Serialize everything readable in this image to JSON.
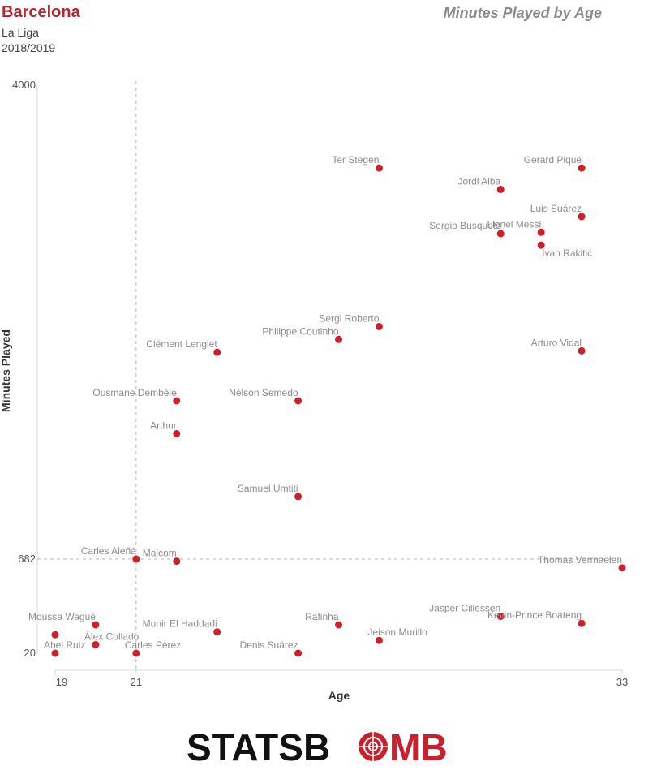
{
  "header": {
    "team": "Barcelona",
    "league": "La Liga",
    "season": "2018/2019",
    "title": "Minutes Played by Age"
  },
  "logo": {
    "text_left": "STATSB",
    "text_right": "MB",
    "brand": "STATSBOMB"
  },
  "colors": {
    "point": "#d11f2a",
    "team": "#b3262c",
    "logo_text": "#111111",
    "logo_accent": "#c8202c"
  },
  "chart_data": {
    "type": "scatter",
    "title": "Minutes Played by Age",
    "xlabel": "Age",
    "ylabel": "Minutes Played",
    "xlim": [
      19,
      33
    ],
    "ylim": [
      20,
      4000
    ],
    "x_ticks": [
      19,
      21,
      33
    ],
    "y_ticks": [
      20,
      682,
      4000
    ],
    "reference_lines": {
      "x": 21,
      "y": 682
    },
    "points": [
      {
        "name": "Ter Stegen",
        "age": 27,
        "minutes": 3420,
        "anchor": "end"
      },
      {
        "name": "Gerard Piqué",
        "age": 32,
        "minutes": 3420,
        "anchor": "end"
      },
      {
        "name": "Jordi Alba",
        "age": 30,
        "minutes": 3270,
        "anchor": "end"
      },
      {
        "name": "Luis Suárez",
        "age": 32,
        "minutes": 3080,
        "anchor": "end"
      },
      {
        "name": "Lionel Messi",
        "age": 31,
        "minutes": 2970,
        "anchor": "end"
      },
      {
        "name": "Sergio Busquets",
        "age": 30,
        "minutes": 2960,
        "anchor": "end"
      },
      {
        "name": "Ivan Rakitić",
        "age": 31,
        "minutes": 2880,
        "anchor": "start-below"
      },
      {
        "name": "Sergi Roberto",
        "age": 27,
        "minutes": 2310,
        "anchor": "end"
      },
      {
        "name": "Philippe Coutinho",
        "age": 26,
        "minutes": 2220,
        "anchor": "end"
      },
      {
        "name": "Arturo Vidal",
        "age": 32,
        "minutes": 2140,
        "anchor": "end"
      },
      {
        "name": "Clément Lenglet",
        "age": 23,
        "minutes": 2130,
        "anchor": "end"
      },
      {
        "name": "Ousmane Dembélé",
        "age": 22,
        "minutes": 1790,
        "anchor": "end"
      },
      {
        "name": "Nélson Semedo",
        "age": 25,
        "minutes": 1790,
        "anchor": "end"
      },
      {
        "name": "Arthur",
        "age": 22,
        "minutes": 1560,
        "anchor": "end"
      },
      {
        "name": "Samuel Umtiti",
        "age": 25,
        "minutes": 1120,
        "anchor": "end"
      },
      {
        "name": "Carles Aleñá",
        "age": 21,
        "minutes": 682,
        "anchor": "end"
      },
      {
        "name": "Malcom",
        "age": 22,
        "minutes": 667,
        "anchor": "end"
      },
      {
        "name": "Thomas Vermaelen",
        "age": 33,
        "minutes": 620,
        "anchor": "end"
      },
      {
        "name": "Jasper Cillessen",
        "age": 30,
        "minutes": 280,
        "anchor": "end"
      },
      {
        "name": "Kevin-Prince Boateng",
        "age": 32,
        "minutes": 230,
        "anchor": "end"
      },
      {
        "name": "Rafinha",
        "age": 26,
        "minutes": 220,
        "anchor": "end"
      },
      {
        "name": "Moussa Wagué",
        "age": 20,
        "minutes": 220,
        "anchor": "end"
      },
      {
        "name": "Munir El Haddadi",
        "age": 23,
        "minutes": 170,
        "anchor": "end"
      },
      {
        "name": "Jeison Murillo",
        "age": 27,
        "minutes": 110,
        "anchor": "start-above"
      },
      {
        "name": "Álex Collado",
        "age": 20,
        "minutes": 80,
        "anchor": "start-above"
      },
      {
        "name": "Abel Ruiz",
        "age": 19,
        "minutes": 20,
        "anchor": "start-above"
      },
      {
        "name": "Carles Pérez",
        "age": 21,
        "minutes": 20,
        "anchor": "start-above"
      },
      {
        "name": "Denis Suárez",
        "age": 25,
        "minutes": 20,
        "anchor": "end"
      },
      {
        "name": "",
        "age": 19,
        "minutes": 150,
        "anchor": "none"
      }
    ]
  }
}
